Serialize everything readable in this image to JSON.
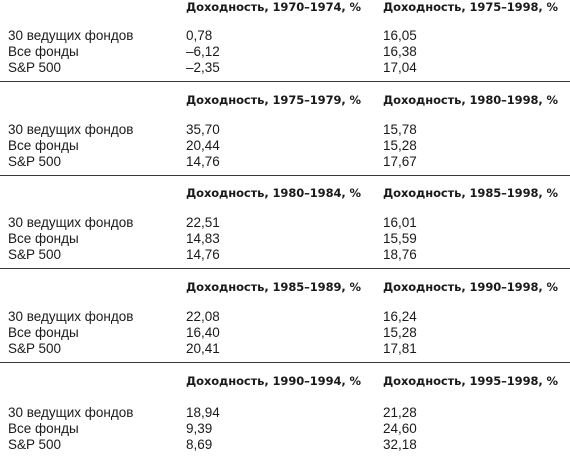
{
  "sections": [
    {
      "header_left": "Доходность, 1970–1974, %",
      "header_right": "Доходность, 1975–1998, %",
      "rows": [
        {
          "label": "30 ведущих фондов",
          "v1": "0,78",
          "v2": "16,05"
        },
        {
          "label": "Все фонды",
          "v1": "–6,12",
          "v2": "16,38"
        },
        {
          "label": "S&P 500",
          "v1": "–2,35",
          "v2": "17,04"
        }
      ]
    },
    {
      "header_left": "Доходность, 1975–1979, %",
      "header_right": "Доходность, 1980–1998, %",
      "rows": [
        {
          "label": "30 ведущих фондов",
          "v1": "35,70",
          "v2": "15,78"
        },
        {
          "label": "Все фонды",
          "v1": "20,44",
          "v2": "15,28"
        },
        {
          "label": "S&P 500",
          "v1": "14,76",
          "v2": "17,67"
        }
      ]
    },
    {
      "header_left": "Доходность, 1980–1984, %",
      "header_right": "Доходность, 1985–1998, %",
      "rows": [
        {
          "label": "30 ведущих фондов",
          "v1": "22,51",
          "v2": "16,01"
        },
        {
          "label": "Все фонды",
          "v1": "14,83",
          "v2": "15,59"
        },
        {
          "label": "S&P 500",
          "v1": "14,76",
          "v2": "18,76"
        }
      ]
    },
    {
      "header_left": "Доходность, 1985–1989, %",
      "header_right": "Доходность, 1990–1998, %",
      "rows": [
        {
          "label": "30 ведущих фондов",
          "v1": "22,08",
          "v2": "16,24"
        },
        {
          "label": "Все фонды",
          "v1": "16,40",
          "v2": "15,28"
        },
        {
          "label": "S&P 500",
          "v1": "20,41",
          "v2": "17,81"
        }
      ]
    },
    {
      "header_left": "Доходность, 1990–1994, %",
      "header_right": "Доходность, 1995–1998, %",
      "rows": [
        {
          "label": "30 ведущих фондов",
          "v1": "18,94",
          "v2": "21,28"
        },
        {
          "label": "Все фонды",
          "v1": "9,39",
          "v2": "24,60"
        },
        {
          "label": "S&P 500",
          "v1": "8,69",
          "v2": "32,18"
        }
      ]
    }
  ]
}
